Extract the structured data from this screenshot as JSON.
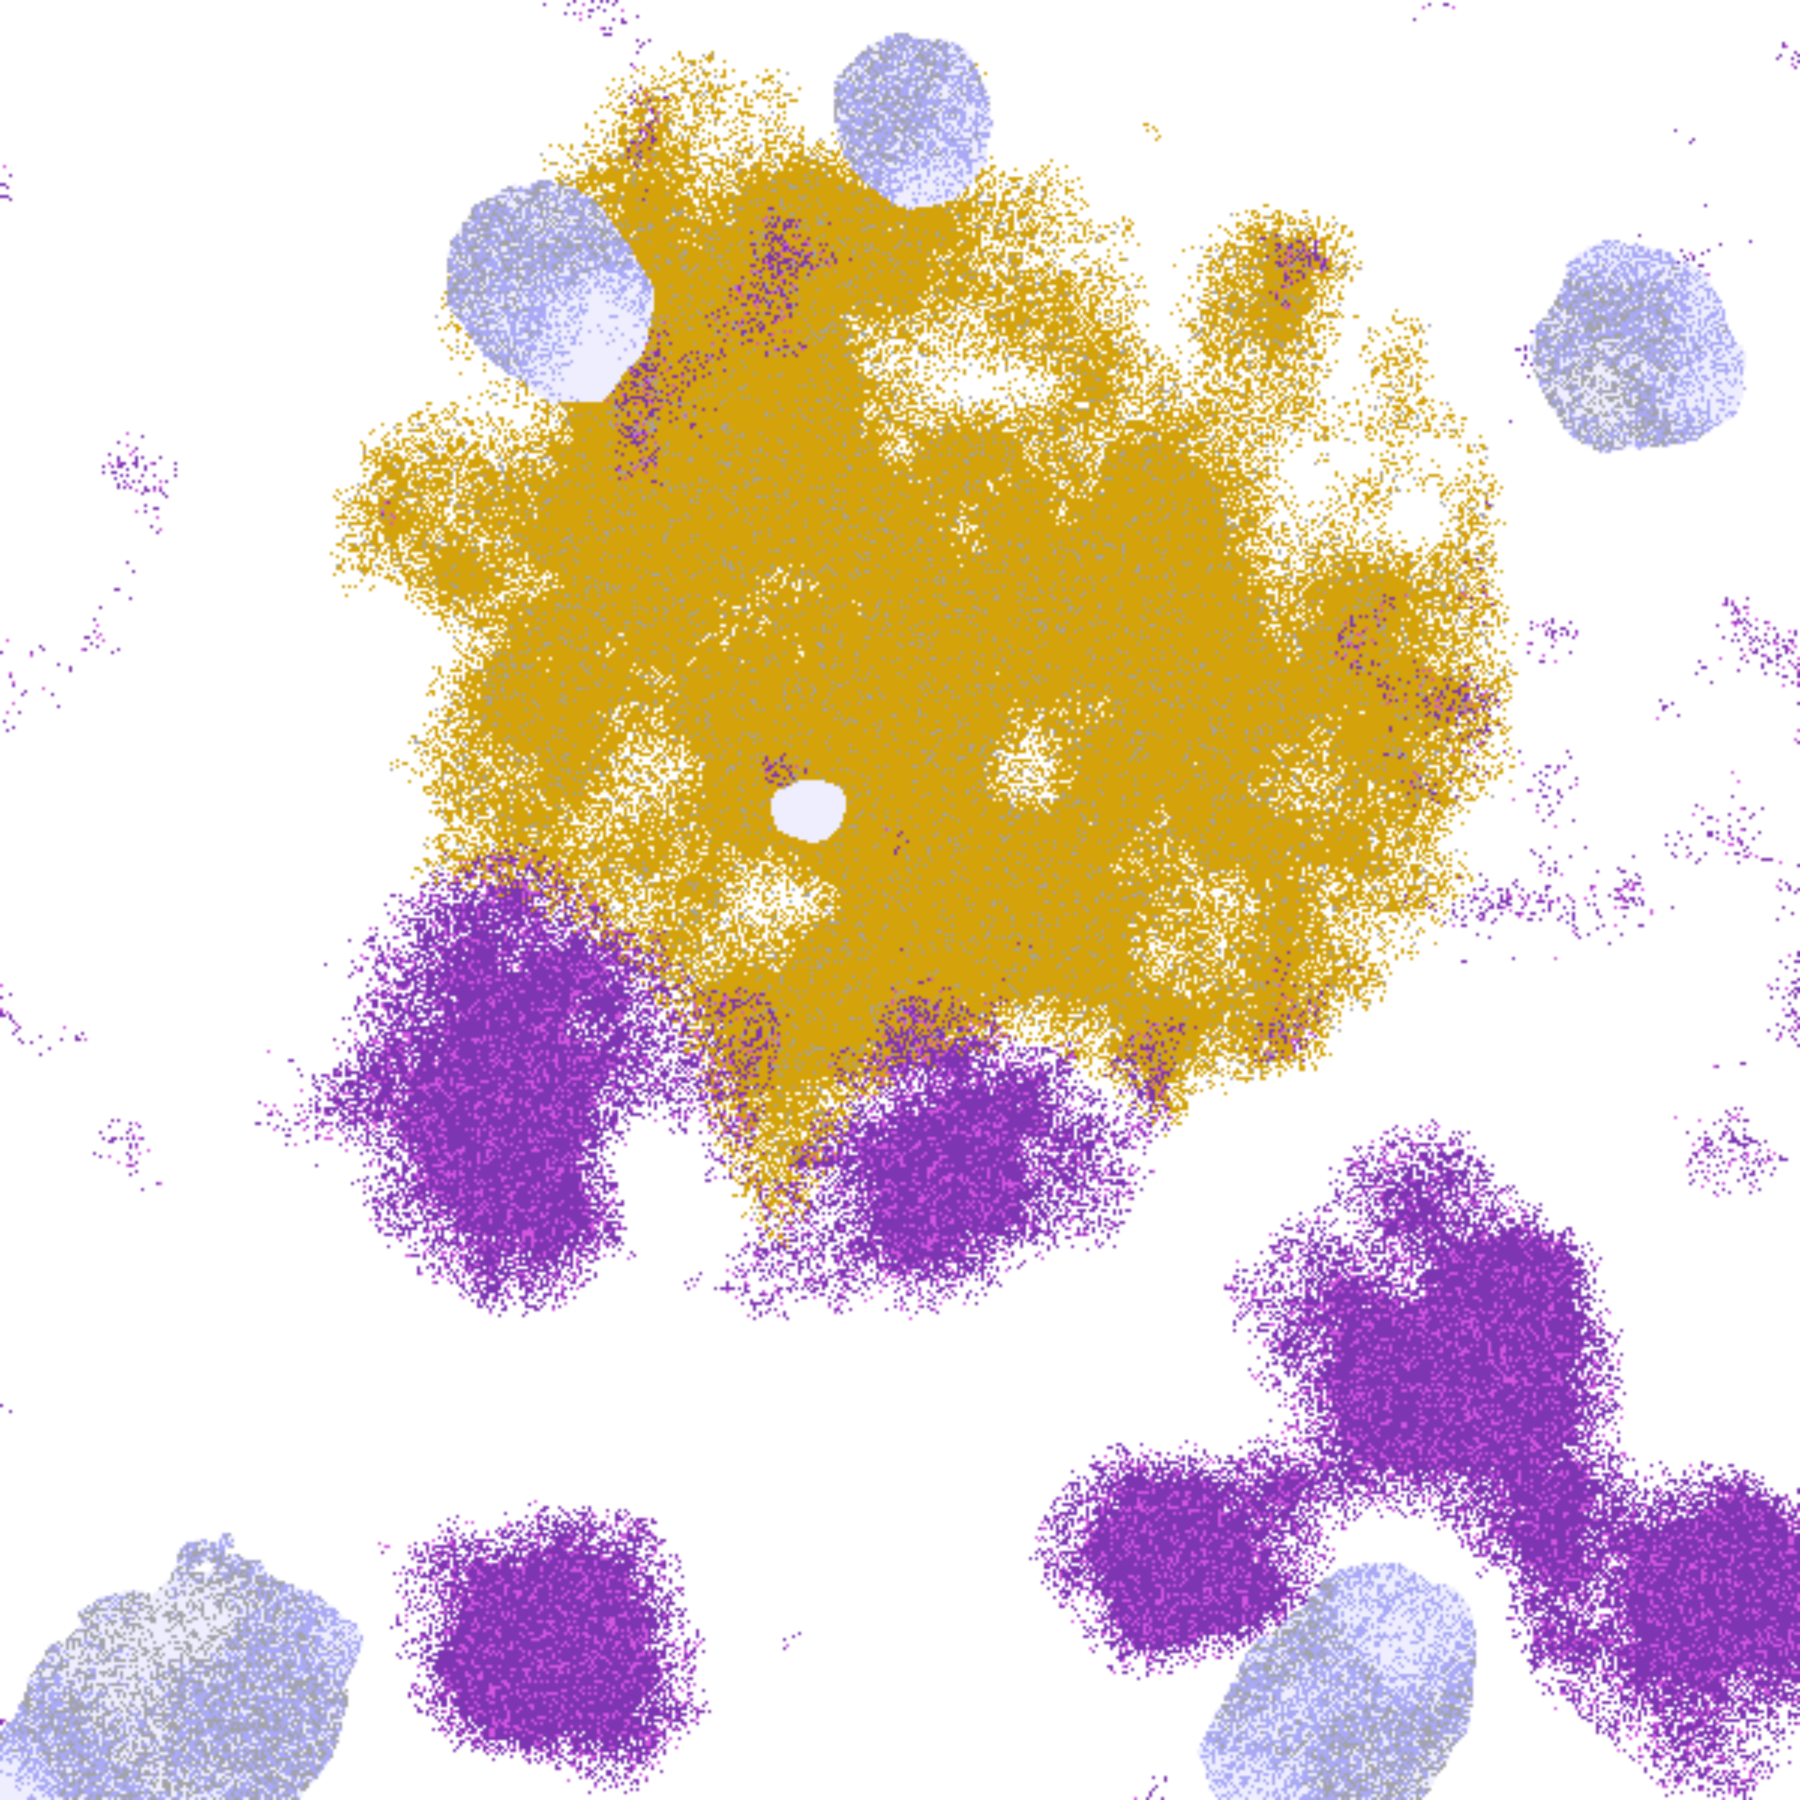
{
  "image": {
    "kind": "classified satellite cloud/terrain map",
    "palette": {
      "background": "#ffffff",
      "terrain_gold": "#d4a20a",
      "deep_purple": "#7d35b2",
      "magenta": "#d457e0",
      "lavender": "#a9a9f5",
      "pale_lavender": "#eeeeff",
      "gray": "#a3a3a8"
    }
  }
}
